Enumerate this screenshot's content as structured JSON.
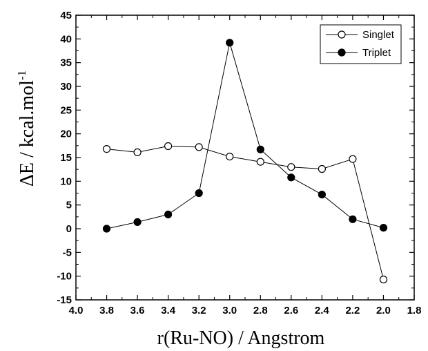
{
  "chart_data": {
    "type": "line",
    "title": "",
    "xlabel": "r(Ru-NO) / Angstrom",
    "ylabel": "ΔE / kcal.mol",
    "ylabel_superscript": "-1",
    "xlim": [
      4.0,
      1.8
    ],
    "ylim": [
      -15,
      45
    ],
    "x_reversed": true,
    "xticks": [
      "4.0",
      "3.8",
      "3.6",
      "3.4",
      "3.2",
      "3.0",
      "2.8",
      "2.6",
      "2.4",
      "2.2",
      "2.0",
      "1.8"
    ],
    "yticks": [
      "-15",
      "-10",
      "-5",
      "0",
      "5",
      "10",
      "15",
      "20",
      "25",
      "30",
      "35",
      "40",
      "45"
    ],
    "grid": false,
    "legend_position": "top-right",
    "series": [
      {
        "name": "Singlet",
        "marker": "open-circle",
        "color": "#000000",
        "x": [
          3.8,
          3.6,
          3.4,
          3.2,
          3.0,
          2.8,
          2.6,
          2.4,
          2.2,
          2.0
        ],
        "y": [
          16.8,
          16.1,
          17.4,
          17.2,
          15.2,
          14.1,
          13.0,
          12.6,
          14.7,
          -10.7
        ]
      },
      {
        "name": "Triplet",
        "marker": "filled-circle",
        "color": "#000000",
        "x": [
          3.8,
          3.6,
          3.4,
          3.2,
          3.0,
          2.8,
          2.6,
          2.4,
          2.2,
          2.0
        ],
        "y": [
          0.0,
          1.4,
          3.0,
          7.5,
          39.2,
          16.7,
          10.8,
          7.2,
          2.0,
          0.2
        ]
      }
    ]
  }
}
